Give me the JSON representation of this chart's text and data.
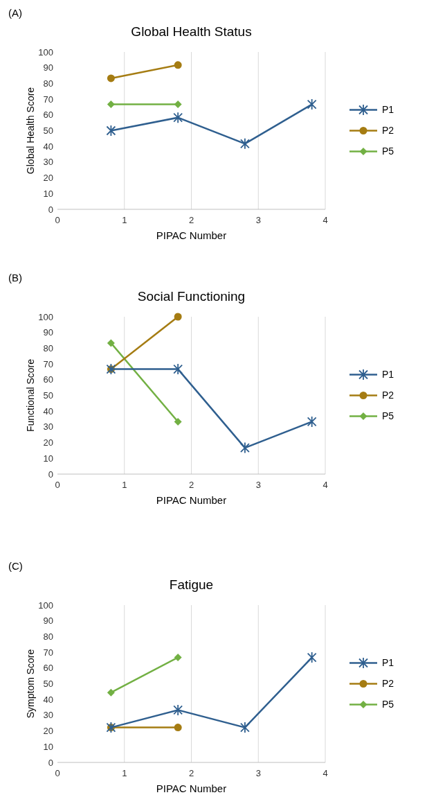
{
  "chart_data": [
    {
      "type": "line",
      "title": "Global Health Status",
      "xlabel": "PIPAC Number",
      "ylabel": "Global Health Score",
      "annotations": [
        "(A)"
      ],
      "xlim": [
        0,
        4
      ],
      "xticks": [
        0,
        1,
        2,
        3,
        4
      ],
      "ylim": [
        0,
        100
      ],
      "yticks": [
        0,
        10,
        20,
        30,
        40,
        50,
        60,
        70,
        80,
        90,
        100
      ],
      "grid": "x",
      "legend": "right",
      "series": [
        {
          "name": "P1",
          "color": "#2f5f8f",
          "marker": "cross",
          "x": [
            0.8,
            1.8,
            2.8,
            3.8
          ],
          "values": [
            50,
            58.3,
            41.7,
            66.7
          ]
        },
        {
          "name": "P2",
          "color": "#a57c12",
          "marker": "circle",
          "x": [
            0.8,
            1.8
          ],
          "values": [
            83.3,
            91.7
          ]
        },
        {
          "name": "P5",
          "color": "#72b043",
          "marker": "diamond",
          "x": [
            0.8,
            1.8
          ],
          "values": [
            66.7,
            66.7
          ]
        }
      ]
    },
    {
      "type": "line",
      "title": "Social Functioning",
      "xlabel": "PIPAC Number",
      "ylabel": "Functional Score",
      "annotations": [
        "(B)"
      ],
      "xlim": [
        0,
        4
      ],
      "xticks": [
        0,
        1,
        2,
        3,
        4
      ],
      "ylim": [
        0,
        100
      ],
      "yticks": [
        0,
        10,
        20,
        30,
        40,
        50,
        60,
        70,
        80,
        90,
        100
      ],
      "grid": "x",
      "legend": "right",
      "series": [
        {
          "name": "P1",
          "color": "#2f5f8f",
          "marker": "cross",
          "x": [
            0.8,
            1.8,
            2.8,
            3.8
          ],
          "values": [
            66.7,
            66.7,
            16.7,
            33.3
          ]
        },
        {
          "name": "P2",
          "color": "#a57c12",
          "marker": "circle",
          "x": [
            0.8,
            1.8
          ],
          "values": [
            66.7,
            100
          ]
        },
        {
          "name": "P5",
          "color": "#72b043",
          "marker": "diamond",
          "x": [
            0.8,
            1.8
          ],
          "values": [
            83.3,
            33.3
          ]
        }
      ]
    },
    {
      "type": "line",
      "title": "Fatigue",
      "xlabel": "PIPAC Number",
      "ylabel": "Symptom Score",
      "annotations": [
        "(C)"
      ],
      "xlim": [
        0,
        4
      ],
      "xticks": [
        0,
        1,
        2,
        3,
        4
      ],
      "ylim": [
        0,
        100
      ],
      "yticks": [
        0,
        10,
        20,
        30,
        40,
        50,
        60,
        70,
        80,
        90,
        100
      ],
      "grid": "x",
      "legend": "right",
      "series": [
        {
          "name": "P1",
          "color": "#2f5f8f",
          "marker": "cross",
          "x": [
            0.8,
            1.8,
            2.8,
            3.8
          ],
          "values": [
            22.2,
            33.3,
            22.2,
            66.7
          ]
        },
        {
          "name": "P2",
          "color": "#a57c12",
          "marker": "circle",
          "x": [
            0.8,
            1.8
          ],
          "values": [
            22.2,
            22.2
          ]
        },
        {
          "name": "P5",
          "color": "#72b043",
          "marker": "diamond",
          "x": [
            0.8,
            1.8
          ],
          "values": [
            44.4,
            66.7
          ]
        }
      ]
    }
  ]
}
